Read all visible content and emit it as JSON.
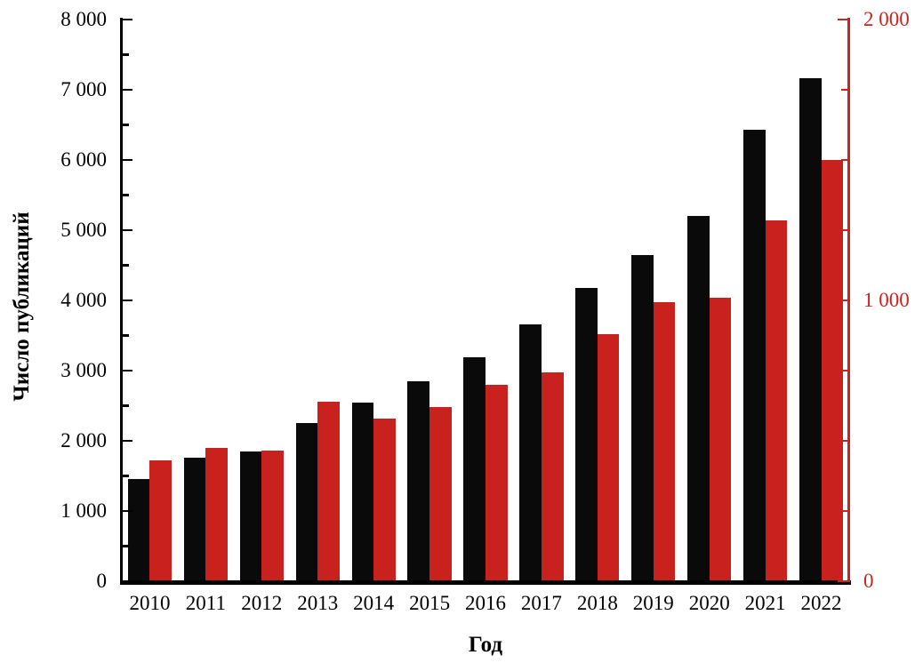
{
  "chart_data": {
    "type": "bar",
    "title": "",
    "categories": [
      "2010",
      "2011",
      "2012",
      "2013",
      "2014",
      "2015",
      "2016",
      "2017",
      "2018",
      "2019",
      "2020",
      "2021",
      "2022"
    ],
    "series": [
      {
        "name": "black-bars",
        "axis": "left",
        "color": "#0a0a0a",
        "values": [
          1450,
          1760,
          1850,
          2250,
          2550,
          2850,
          3190,
          3660,
          4180,
          4650,
          5200,
          6430,
          7160
        ]
      },
      {
        "name": "red-bars",
        "axis": "right",
        "color": "#c9211e",
        "values": [
          430,
          475,
          465,
          640,
          580,
          620,
          700,
          745,
          880,
          995,
          1010,
          1285,
          1500
        ]
      }
    ],
    "left_axis": {
      "title": "Число публикаций",
      "min": 0,
      "max": 8000,
      "major_step": 1000,
      "minor_step": 500,
      "tick_labels": [
        "0",
        "1 000",
        "2 000",
        "3 000",
        "4 000",
        "5 000",
        "6 000",
        "7 000",
        "8 000"
      ],
      "color": "#000000"
    },
    "right_axis": {
      "min": 0,
      "max": 2000,
      "major_step": 1000,
      "minor_step": 250,
      "tick_labels": [
        "0",
        "1 000",
        "2 000"
      ],
      "color": "#c9241f"
    },
    "x_axis": {
      "title": "Год",
      "tick_labels": [
        "2010",
        "2011",
        "2012",
        "2013",
        "2014",
        "2015",
        "2016",
        "2017",
        "2018",
        "2019",
        "2020",
        "2021",
        "2022"
      ]
    },
    "legend": "none",
    "grid": false,
    "background": "#ffffff"
  }
}
